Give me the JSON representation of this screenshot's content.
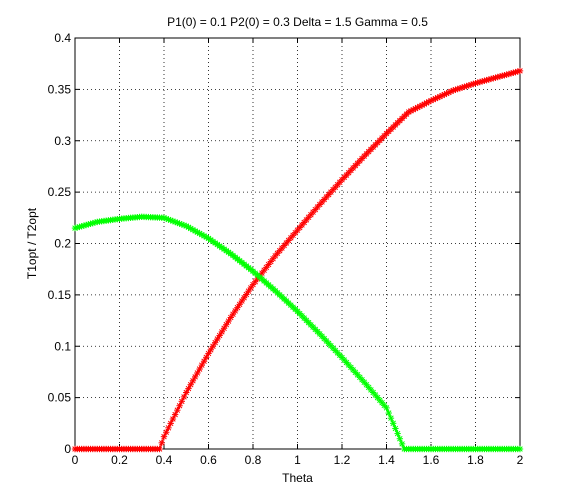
{
  "chart_data": {
    "type": "line",
    "title": "P1(0) = 0.1 P2(0) = 0.3 Delta = 1.5 Gamma = 0.5",
    "xlabel": "Theta",
    "ylabel": "T1opt / T2opt",
    "xlim": [
      0,
      2
    ],
    "ylim": [
      0,
      0.4
    ],
    "grid": true,
    "marker": "*",
    "x_ticks": [
      0,
      0.2,
      0.4,
      0.6,
      0.8,
      1,
      1.2,
      1.4,
      1.6,
      1.8,
      2
    ],
    "x_tick_labels": [
      "0",
      "0.2",
      "0.4",
      "0.6",
      "0.8",
      "1",
      "1.2",
      "1.4",
      "1.6",
      "1.8",
      "2"
    ],
    "y_ticks": [
      0,
      0.05,
      0.1,
      0.15,
      0.2,
      0.25,
      0.3,
      0.35,
      0.4
    ],
    "y_tick_labels": [
      "0",
      "0.05",
      "0.1",
      "0.15",
      "0.2",
      "0.25",
      "0.3",
      "0.35",
      "0.4"
    ],
    "series": [
      {
        "color": "#ff0000",
        "x": [
          0,
          0.1,
          0.2,
          0.3,
          0.38,
          0.4,
          0.5,
          0.6,
          0.7,
          0.8,
          0.9,
          1.0,
          1.1,
          1.2,
          1.3,
          1.4,
          1.5,
          1.6,
          1.7,
          1.8,
          1.9,
          2.0
        ],
        "y": [
          0,
          0,
          0,
          0,
          0,
          0.012,
          0.055,
          0.093,
          0.128,
          0.16,
          0.188,
          0.213,
          0.238,
          0.262,
          0.285,
          0.307,
          0.328,
          0.339,
          0.349,
          0.356,
          0.362,
          0.368
        ]
      },
      {
        "color": "#00ff00",
        "x": [
          0,
          0.1,
          0.2,
          0.3,
          0.4,
          0.5,
          0.6,
          0.7,
          0.8,
          0.9,
          1.0,
          1.1,
          1.2,
          1.3,
          1.4,
          1.48,
          1.5,
          1.6,
          1.7,
          1.8,
          1.9,
          2.0
        ],
        "y": [
          0.215,
          0.221,
          0.224,
          0.226,
          0.225,
          0.217,
          0.205,
          0.19,
          0.173,
          0.154,
          0.134,
          0.112,
          0.089,
          0.065,
          0.04,
          0.0,
          0,
          0,
          0,
          0,
          0,
          0
        ]
      }
    ]
  }
}
